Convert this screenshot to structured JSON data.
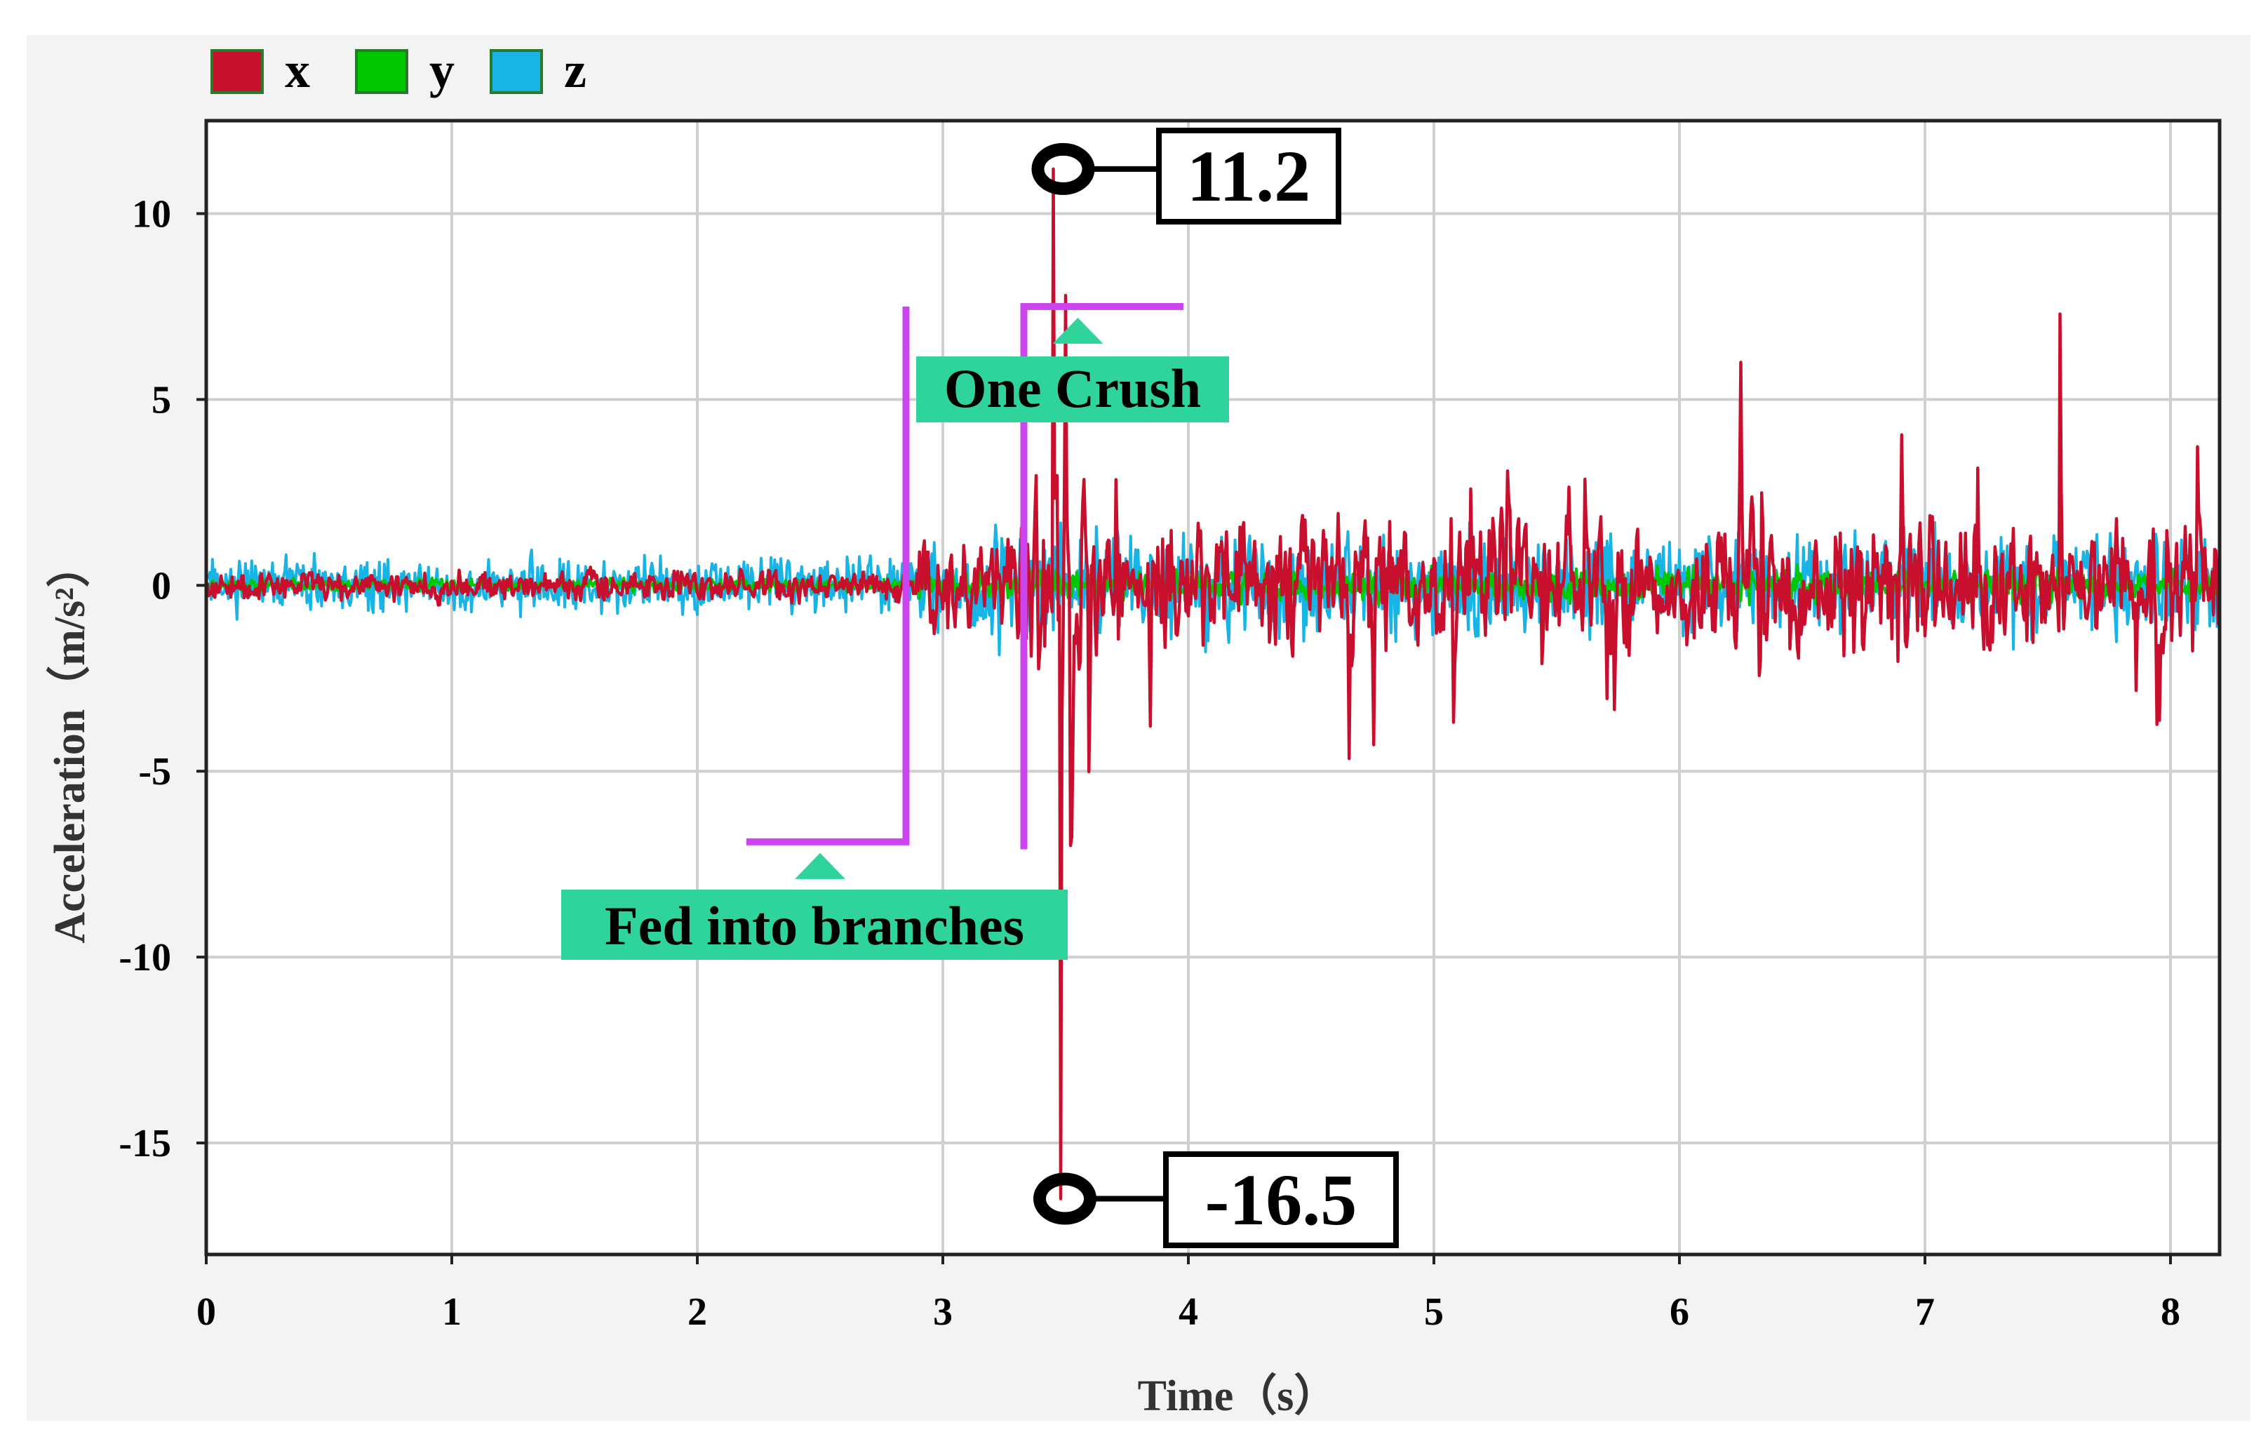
{
  "chart_data": {
    "type": "line",
    "xlabel": "Time（s）",
    "ylabel": "Acceleration（m/s²）",
    "xlim": [
      0,
      8.2
    ],
    "ylim": [
      -18,
      12.5
    ],
    "x_ticks": [
      "0",
      "1",
      "2",
      "3",
      "4",
      "5",
      "6",
      "7",
      "8"
    ],
    "y_ticks": [
      "10",
      "5",
      "0",
      "-5",
      "-10",
      "-15"
    ],
    "grid": true,
    "legend_position": "top-left",
    "series": [
      {
        "name": "x",
        "color": "#c8102e"
      },
      {
        "name": "y",
        "color": "#00c800"
      },
      {
        "name": "z",
        "color": "#18b4e6"
      }
    ],
    "peaks": [
      {
        "label": "11.2",
        "x": 3.45,
        "y": 11.2
      },
      {
        "label": "-16.5",
        "x": 3.48,
        "y": -16.5
      }
    ],
    "phases": [
      {
        "label": "Fed into branches",
        "x_start": 2.2,
        "x_end": 2.85
      },
      {
        "label": "One Crush",
        "x_start": 3.33,
        "x_end": 3.98
      }
    ],
    "colors": {
      "phase_bracket": "#cc44ee",
      "phase_label_bg": "#2fd49a",
      "plot_bg": "#ffffff",
      "frame_bg": "#f3f3f3",
      "grid": "#cfcfcf"
    }
  }
}
